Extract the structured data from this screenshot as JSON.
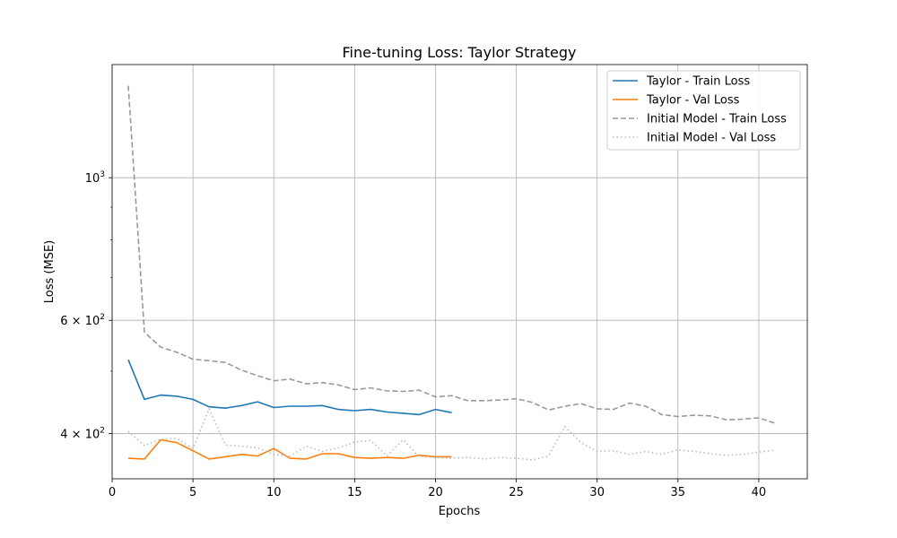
{
  "chart_data": {
    "type": "line",
    "title": "Fine-tuning Loss: Taylor Strategy",
    "xlabel": "Epochs",
    "ylabel": "Loss (MSE)",
    "xlim": [
      0.0,
      43.0
    ],
    "ylim": [
      340,
      1500
    ],
    "yscale": "log",
    "grid": true,
    "legend_position": "top-right",
    "x_ticks": [
      0,
      5,
      10,
      15,
      20,
      25,
      30,
      35,
      40
    ],
    "y_ticks": [
      {
        "value": 400,
        "mantissa": "4",
        "exponent": "2"
      },
      {
        "value": 600,
        "mantissa": "6",
        "exponent": "2"
      },
      {
        "value": 1000,
        "mantissa": "",
        "exponent": "3"
      }
    ],
    "y_minor_ticks": [
      500,
      700,
      800,
      900
    ],
    "series": [
      {
        "name": "Taylor - Train Loss",
        "color": "#1f77b4",
        "dash": "solid",
        "x": [
          1,
          2,
          3,
          4,
          5,
          6,
          7,
          8,
          9,
          10,
          11,
          12,
          13,
          14,
          15,
          16,
          17,
          18,
          19,
          20,
          21
        ],
        "y": [
          521,
          452,
          459,
          457,
          452,
          440,
          438,
          442,
          448,
          439,
          441,
          441,
          442,
          436,
          434,
          436,
          432,
          430,
          428,
          436,
          431
        ]
      },
      {
        "name": "Taylor - Val Loss",
        "color": "#ff7f0e",
        "dash": "solid",
        "x": [
          1,
          2,
          3,
          4,
          5,
          6,
          7,
          8,
          9,
          10,
          11,
          12,
          13,
          14,
          15,
          16,
          17,
          18,
          19,
          20,
          21
        ],
        "y": [
          366,
          365,
          391,
          387,
          376,
          365,
          368,
          371,
          369,
          379,
          366,
          365,
          372,
          372,
          367,
          366,
          367,
          366,
          370,
          368,
          368
        ]
      },
      {
        "name": "Initial Model - Train Loss",
        "color": "#999999",
        "dash": "dashed",
        "x": [
          1,
          2,
          3,
          4,
          5,
          6,
          7,
          8,
          9,
          10,
          11,
          12,
          13,
          14,
          15,
          16,
          17,
          18,
          19,
          20,
          21,
          22,
          23,
          24,
          25,
          26,
          27,
          28,
          29,
          30,
          31,
          32,
          33,
          34,
          35,
          36,
          37,
          38,
          39,
          40,
          41
        ],
        "y": [
          1390,
          575,
          545,
          535,
          522,
          519,
          516,
          502,
          492,
          483,
          486,
          478,
          480,
          476,
          468,
          471,
          466,
          465,
          467,
          456,
          458,
          450,
          450,
          451,
          453,
          447,
          435,
          441,
          445,
          437,
          436,
          446,
          441,
          428,
          425,
          427,
          426,
          420,
          421,
          423,
          415
        ]
      },
      {
        "name": "Initial Model - Val Loss",
        "color": "#bbbbbb",
        "dash": "dotted",
        "x": [
          1,
          2,
          3,
          4,
          5,
          6,
          7,
          8,
          9,
          10,
          11,
          12,
          13,
          14,
          15,
          16,
          17,
          18,
          19,
          20,
          21,
          22,
          23,
          24,
          25,
          26,
          27,
          28,
          29,
          30,
          31,
          32,
          33,
          34,
          35,
          36,
          37,
          38,
          39,
          40,
          41
        ],
        "y": [
          403,
          383,
          392,
          393,
          379,
          437,
          384,
          382,
          380,
          371,
          369,
          382,
          375,
          380,
          388,
          390,
          369,
          391,
          368,
          367,
          366,
          367,
          365,
          367,
          366,
          364,
          369,
          410,
          387,
          375,
          376,
          371,
          375,
          371,
          377,
          375,
          372,
          370,
          371,
          374,
          377
        ]
      }
    ]
  }
}
